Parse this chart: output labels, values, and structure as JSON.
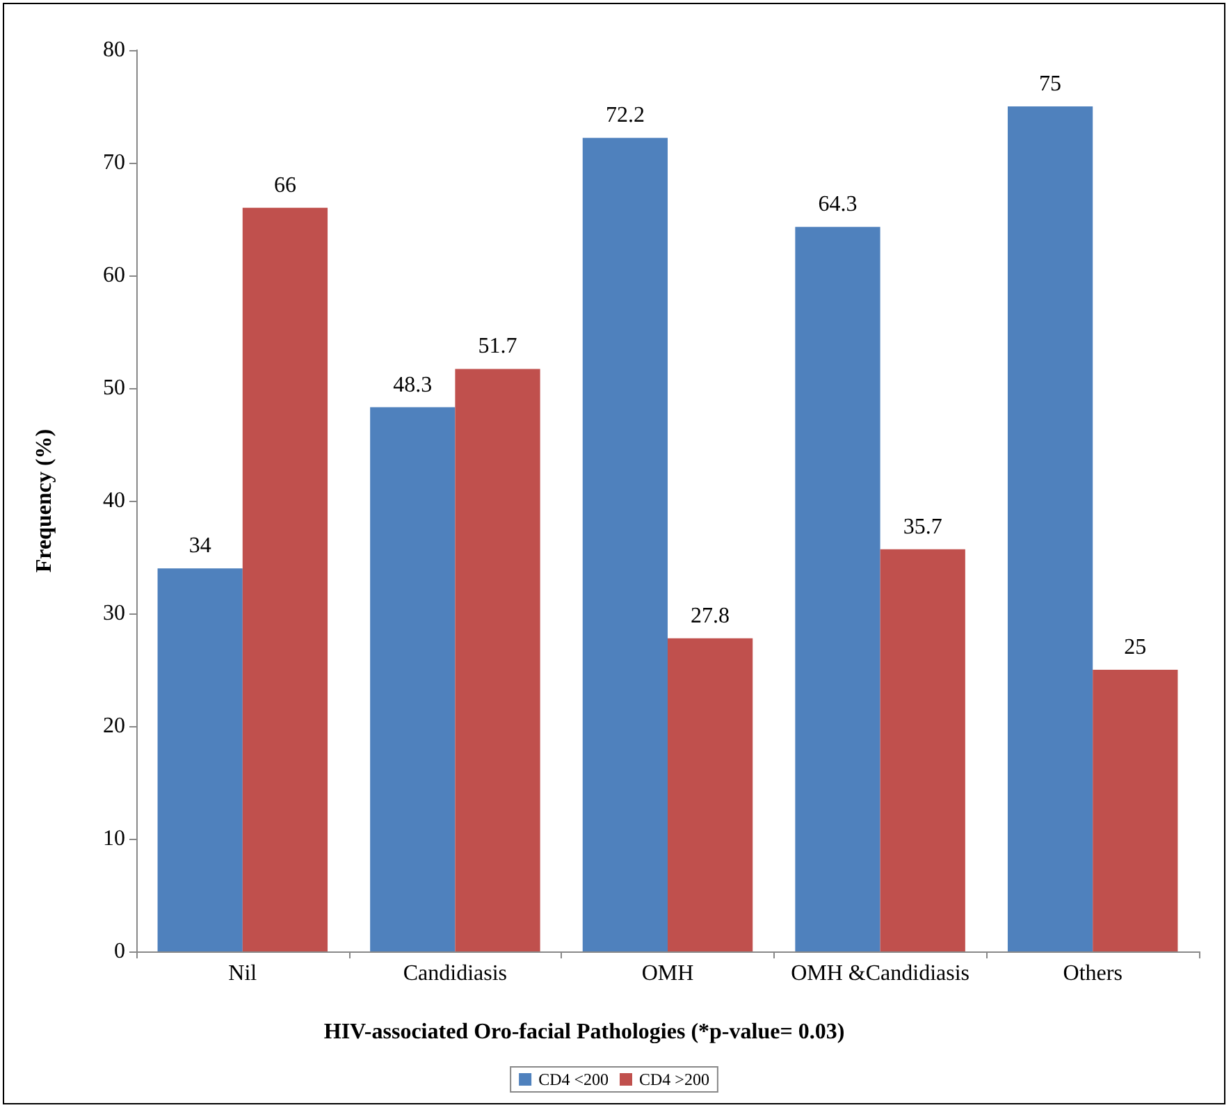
{
  "chart_data": {
    "type": "bar",
    "xlabel": "HIV-associated Oro-facial Pathologies (*p-value= 0.03)",
    "ylabel": "Frequency (%)",
    "categories": [
      "Nil",
      "Candidiasis",
      "OMH",
      "OMH &Candidiasis",
      "Others"
    ],
    "series": [
      {
        "name": "CD4 <200",
        "color": "#4f81bd",
        "values": [
          34,
          48.3,
          72.2,
          64.3,
          75
        ]
      },
      {
        "name": "CD4 >200",
        "color": "#c0504d",
        "values": [
          66,
          51.7,
          27.8,
          35.7,
          25
        ]
      }
    ],
    "ylim": [
      0,
      80
    ],
    "yticks": [
      0,
      10,
      20,
      30,
      40,
      50,
      60,
      70,
      80
    ],
    "grid": false,
    "legend": "bottom",
    "data_labels": true
  }
}
